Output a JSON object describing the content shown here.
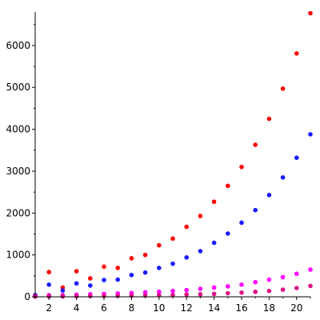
{
  "chart_data": {
    "type": "scatter",
    "title": "",
    "xlabel": "",
    "ylabel": "",
    "xlim": [
      1,
      21
    ],
    "ylim": [
      0,
      6800
    ],
    "grid": false,
    "legend": "none",
    "x_ticks": [
      2,
      4,
      6,
      8,
      10,
      12,
      14,
      16,
      18,
      20
    ],
    "y_ticks": [
      0,
      1000,
      2000,
      3000,
      4000,
      5000,
      6000
    ],
    "series": [
      {
        "color": "#ff0000",
        "x": [
          1,
          2,
          3,
          4,
          5,
          6,
          7,
          8,
          9,
          10,
          11,
          12,
          13,
          14,
          15,
          16,
          17,
          18,
          19,
          20,
          21
        ],
        "y": [
          40,
          590,
          220,
          610,
          440,
          720,
          690,
          920,
          1000,
          1230,
          1390,
          1670,
          1930,
          2270,
          2650,
          3100,
          3630,
          4250,
          4970,
          5810,
          6770
        ]
      },
      {
        "color": "#1a1aff",
        "x": [
          1,
          2,
          3,
          4,
          5,
          6,
          7,
          8,
          9,
          10,
          11,
          12,
          13,
          14,
          15,
          16,
          17,
          18,
          19,
          20,
          21
        ],
        "y": [
          40,
          290,
          150,
          320,
          270,
          400,
          410,
          520,
          580,
          690,
          790,
          940,
          1090,
          1290,
          1510,
          1770,
          2070,
          2430,
          2850,
          3320,
          3880
        ]
      },
      {
        "color": "#ff00ff",
        "x": [
          1,
          2,
          3,
          4,
          5,
          6,
          7,
          8,
          9,
          10,
          11,
          12,
          13,
          14,
          15,
          16,
          17,
          18,
          19,
          20,
          21
        ],
        "y": [
          20,
          40,
          40,
          50,
          60,
          70,
          80,
          90,
          110,
          120,
          140,
          160,
          190,
          220,
          250,
          290,
          350,
          410,
          470,
          550,
          650
        ]
      },
      {
        "color": "#dd1188",
        "x": [
          1,
          2,
          3,
          4,
          5,
          6,
          7,
          8,
          9,
          10,
          11,
          12,
          13,
          14,
          15,
          16,
          17,
          18,
          19,
          20,
          21
        ],
        "y": [
          5,
          10,
          10,
          15,
          20,
          20,
          25,
          30,
          35,
          40,
          45,
          55,
          60,
          70,
          85,
          100,
          120,
          140,
          170,
          210,
          260
        ]
      }
    ]
  }
}
